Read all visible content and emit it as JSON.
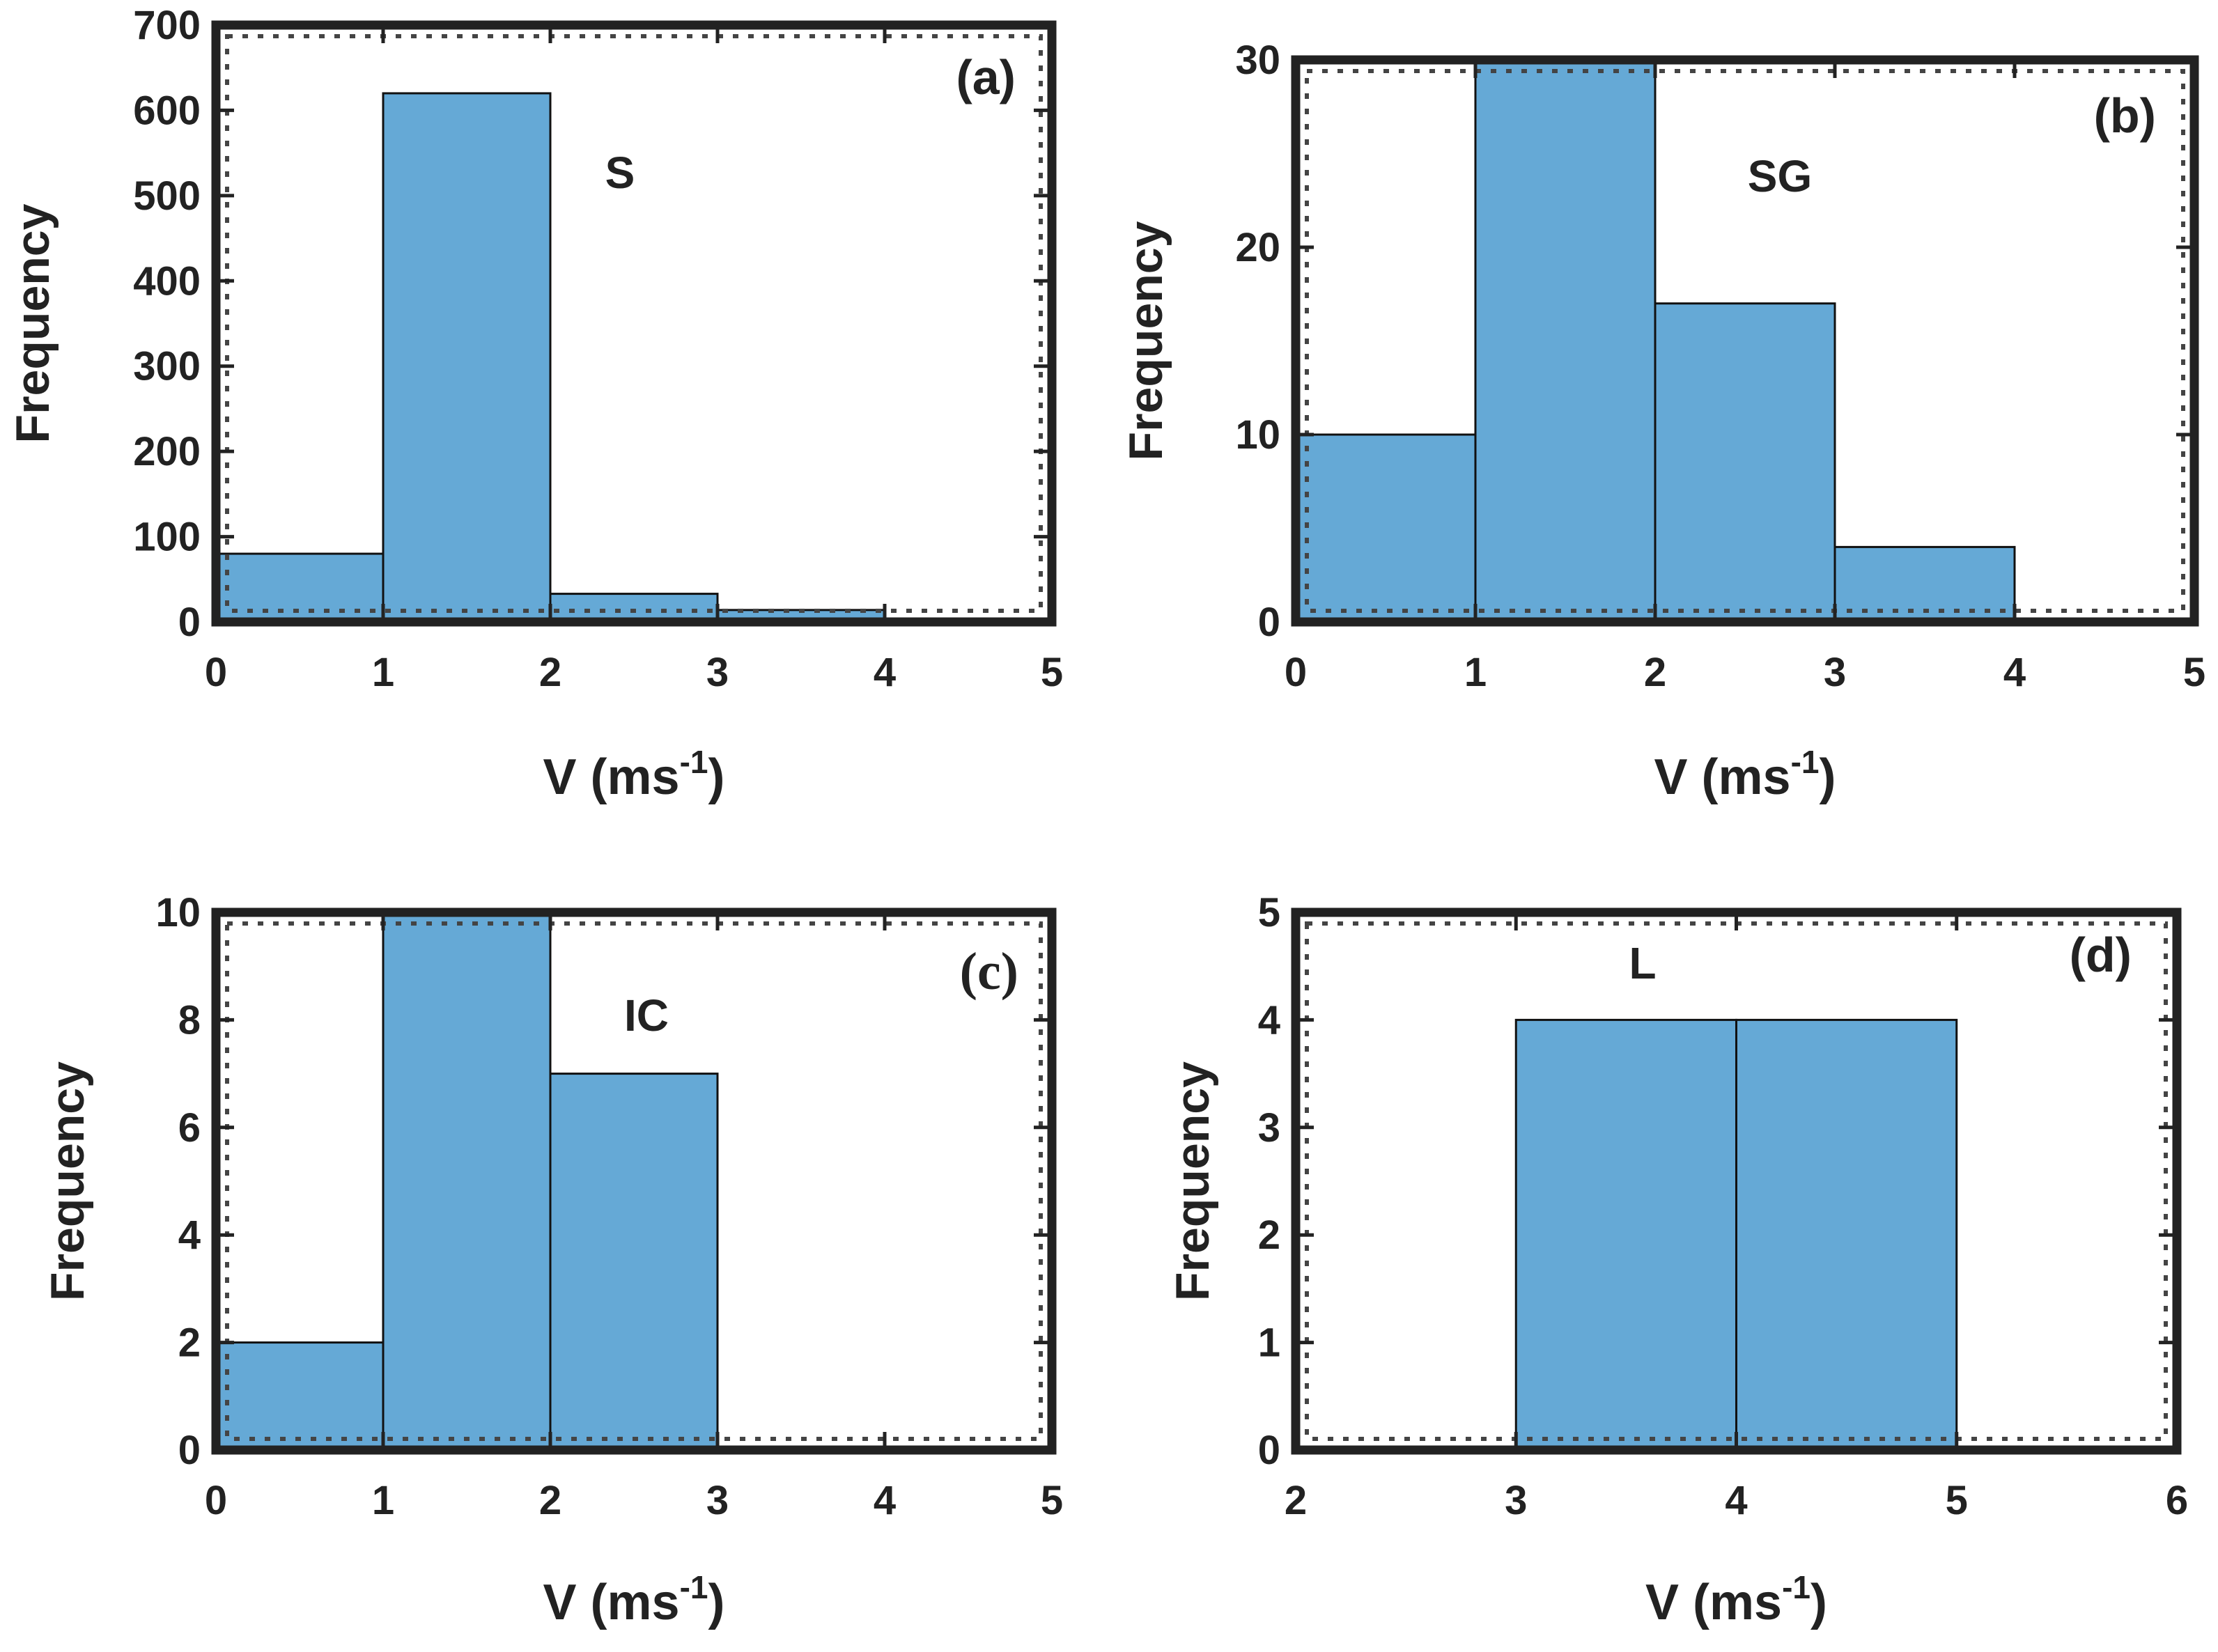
{
  "chart_data": [
    {
      "type": "bar",
      "panel_label": "(a)",
      "annotation": "S",
      "xlabel": "V (ms",
      "xlabel_sup": "-1",
      "xlabel_close": ")",
      "ylabel": "Frequency",
      "xlim": [
        0,
        5
      ],
      "ylim": [
        0,
        700
      ],
      "xticks": [
        0,
        1,
        2,
        3,
        4,
        5
      ],
      "yticks": [
        0,
        100,
        200,
        300,
        400,
        500,
        600,
        700
      ],
      "bins": [
        [
          0,
          1
        ],
        [
          1,
          2
        ],
        [
          2,
          3
        ],
        [
          3,
          4
        ]
      ],
      "values": [
        80,
        620,
        33,
        14
      ],
      "bar_color": "#65a9d6"
    },
    {
      "type": "bar",
      "panel_label": "(b)",
      "annotation": "SG",
      "xlabel": "V (ms",
      "xlabel_sup": "-1",
      "xlabel_close": ")",
      "ylabel": "Frequency",
      "xlim": [
        0,
        5
      ],
      "ylim": [
        0,
        30
      ],
      "xticks": [
        0,
        1,
        2,
        3,
        4,
        5
      ],
      "yticks": [
        0,
        10,
        20,
        30
      ],
      "bins": [
        [
          0,
          1
        ],
        [
          1,
          2
        ],
        [
          2,
          3
        ],
        [
          3,
          4
        ]
      ],
      "values": [
        10,
        30,
        17,
        4
      ],
      "bar_color": "#65a9d6"
    },
    {
      "type": "bar",
      "panel_label": "(c)",
      "annotation": "IC",
      "xlabel": "V (ms",
      "xlabel_sup": "-1",
      "xlabel_close": ")",
      "ylabel": "Frequency",
      "xlim": [
        0,
        5
      ],
      "ylim": [
        0,
        10
      ],
      "xticks": [
        0,
        1,
        2,
        3,
        4,
        5
      ],
      "yticks": [
        0,
        2,
        4,
        6,
        8,
        10
      ],
      "bins": [
        [
          0,
          1
        ],
        [
          1,
          2
        ],
        [
          2,
          3
        ]
      ],
      "values": [
        2,
        10,
        7
      ],
      "bar_color": "#65a9d6"
    },
    {
      "type": "bar",
      "panel_label": "(d)",
      "annotation": "L",
      "xlabel": "V (ms",
      "xlabel_sup": "-1",
      "xlabel_close": ")",
      "ylabel": "Frequency",
      "xlim": [
        2,
        6
      ],
      "ylim": [
        0,
        5
      ],
      "xticks": [
        2,
        3,
        4,
        5,
        6
      ],
      "yticks": [
        0,
        1,
        2,
        3,
        4,
        5
      ],
      "bins": [
        [
          3,
          4
        ],
        [
          4,
          5
        ]
      ],
      "values": [
        4,
        4
      ],
      "bar_color": "#65a9d6"
    }
  ]
}
